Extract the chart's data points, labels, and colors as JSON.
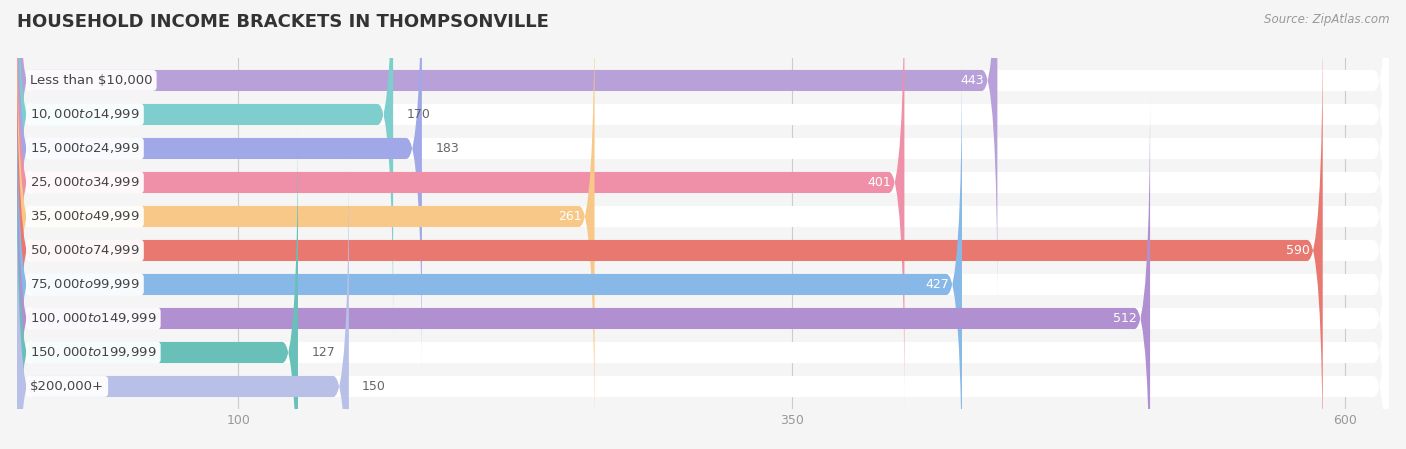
{
  "title": "HOUSEHOLD INCOME BRACKETS IN THOMPSONVILLE",
  "source": "Source: ZipAtlas.com",
  "categories": [
    "Less than $10,000",
    "$10,000 to $14,999",
    "$15,000 to $24,999",
    "$25,000 to $34,999",
    "$35,000 to $49,999",
    "$50,000 to $74,999",
    "$75,000 to $99,999",
    "$100,000 to $149,999",
    "$150,000 to $199,999",
    "$200,000+"
  ],
  "values": [
    443,
    170,
    183,
    401,
    261,
    590,
    427,
    512,
    127,
    150
  ],
  "bar_colors": [
    "#b8a0d8",
    "#7ecece",
    "#a0a8e8",
    "#f090a8",
    "#f8c888",
    "#e87870",
    "#88b8e8",
    "#b090d0",
    "#68c0b8",
    "#b8c0e8"
  ],
  "bar_height": 0.62,
  "xmax": 620,
  "xticks": [
    100,
    350,
    600
  ],
  "background_color": "#f5f5f5",
  "bar_bg_color": "#ffffff",
  "title_fontsize": 13,
  "label_fontsize": 9.5,
  "value_fontsize": 9,
  "tick_fontsize": 9,
  "source_fontsize": 8.5,
  "value_threshold": 200
}
